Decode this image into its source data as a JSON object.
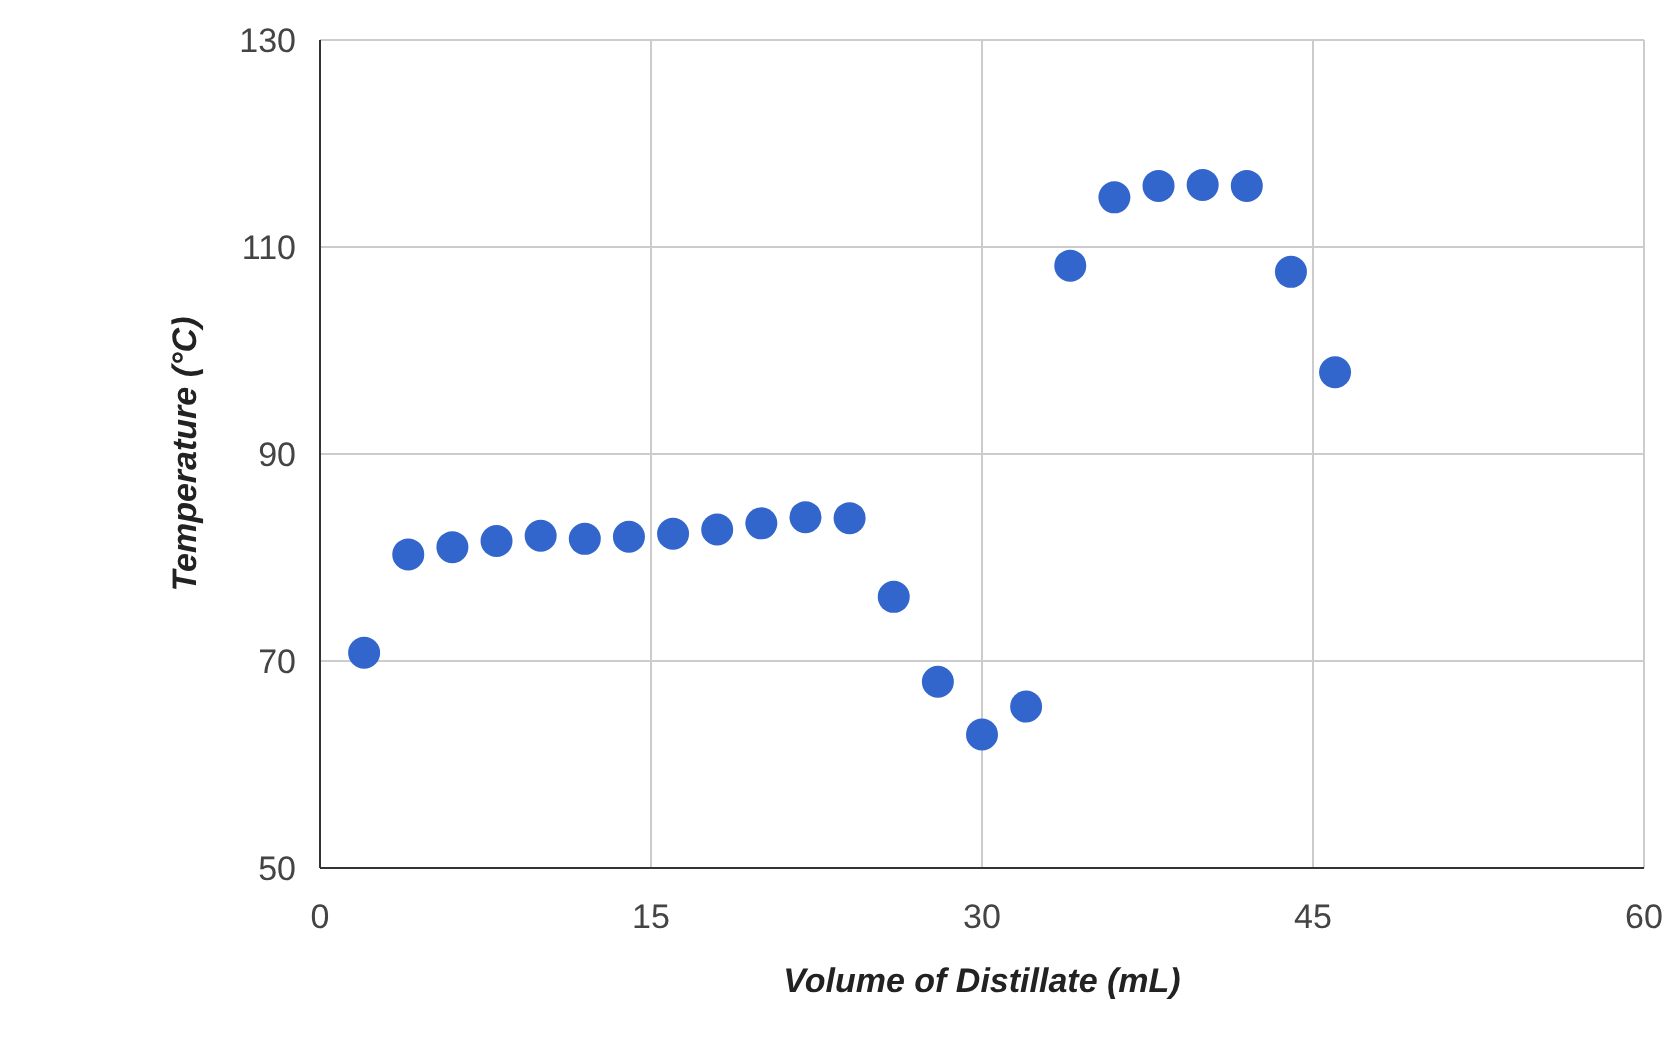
{
  "chart_data": {
    "type": "scatter",
    "xlabel": "Volume of Distillate (mL)",
    "ylabel": "Temperature (°C)",
    "x": [
      2,
      4,
      6,
      8,
      10,
      12,
      14,
      16,
      18,
      20,
      22,
      24,
      26,
      28,
      30,
      32,
      34,
      36,
      38,
      40,
      42,
      44,
      46
    ],
    "series": [
      {
        "color": "#3366cc",
        "values": [
          70.8,
          80.3,
          81.0,
          81.6,
          82.1,
          81.8,
          82.0,
          82.3,
          82.7,
          83.3,
          83.9,
          83.8,
          76.2,
          68.0,
          62.9,
          65.6,
          108.2,
          114.8,
          115.9,
          116.0,
          115.9,
          107.6,
          97.9
        ]
      }
    ],
    "xlim": [
      0,
      60
    ],
    "xticks": [
      0,
      15,
      30,
      45,
      60
    ],
    "ylim": [
      50,
      130
    ],
    "yticks": [
      50,
      70,
      90,
      110,
      130
    ],
    "grid": true,
    "marker": "circle"
  }
}
